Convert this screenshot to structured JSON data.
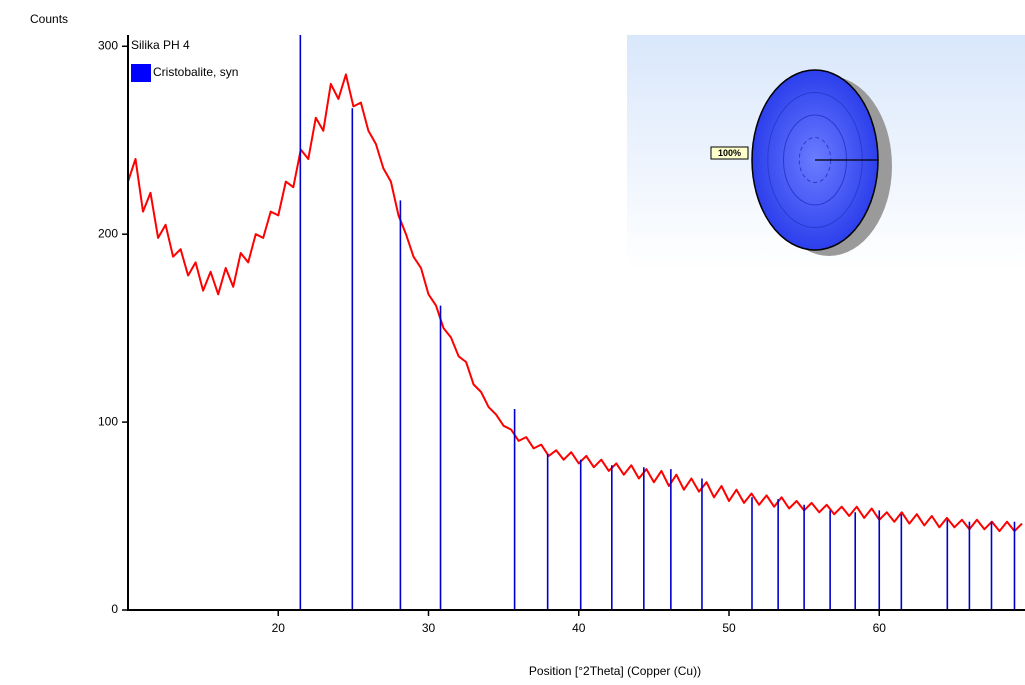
{
  "chart_data": {
    "type": "line",
    "y_label": "Counts",
    "x_label": "Position [°2Theta] (Copper (Cu))",
    "xlim": [
      10,
      69.7
    ],
    "xticks": [
      20,
      30,
      40,
      50,
      60
    ],
    "ylim": [
      0,
      306
    ],
    "yticks": [
      0,
      100,
      200,
      300
    ],
    "series": [
      {
        "name": "Silika PH 4",
        "color": "#ff0000",
        "x": [
          10,
          10.5,
          11,
          11.5,
          12,
          12.5,
          13,
          13.5,
          14,
          14.5,
          15,
          15.5,
          16,
          16.5,
          17,
          17.5,
          18,
          18.5,
          19,
          19.5,
          20,
          20.5,
          21,
          21.5,
          22,
          22.5,
          23,
          23.5,
          24,
          24.5,
          25,
          25.5,
          26,
          26.5,
          27,
          27.5,
          28,
          28.5,
          29,
          29.5,
          30,
          30.5,
          31,
          31.5,
          32,
          32.5,
          33,
          33.5,
          34,
          34.5,
          35,
          35.5,
          36,
          36.5,
          37,
          37.5,
          38,
          38.5,
          39,
          39.5,
          40,
          40.5,
          41,
          41.5,
          42,
          42.5,
          43,
          43.5,
          44,
          44.5,
          45,
          45.5,
          46,
          46.5,
          47,
          47.5,
          48,
          48.5,
          49,
          49.5,
          50,
          50.5,
          51,
          51.5,
          52,
          52.5,
          53,
          53.5,
          54,
          54.5,
          55,
          55.5,
          56,
          56.5,
          57,
          57.5,
          58,
          58.5,
          59,
          59.5,
          60,
          60.5,
          61,
          61.5,
          62,
          62.5,
          63,
          63.5,
          64,
          64.5,
          65,
          65.5,
          66,
          66.5,
          67,
          67.5,
          68,
          68.5,
          69,
          69.5
        ],
        "values": [
          228,
          240,
          212,
          222,
          198,
          205,
          188,
          192,
          178,
          185,
          170,
          180,
          168,
          182,
          172,
          190,
          185,
          200,
          198,
          212,
          210,
          228,
          225,
          245,
          240,
          262,
          255,
          280,
          272,
          285,
          268,
          270,
          255,
          248,
          235,
          228,
          210,
          200,
          188,
          182,
          168,
          162,
          150,
          145,
          135,
          132,
          120,
          116,
          108,
          104,
          98,
          96,
          90,
          92,
          86,
          88,
          82,
          85,
          80,
          84,
          78,
          82,
          76,
          80,
          74,
          78,
          72,
          77,
          70,
          75,
          68,
          74,
          66,
          72,
          64,
          70,
          63,
          68,
          60,
          66,
          58,
          64,
          57,
          62,
          56,
          61,
          55,
          60,
          54,
          58,
          53,
          57,
          52,
          56,
          51,
          55,
          50,
          55,
          49,
          54,
          48,
          52,
          47,
          52,
          46,
          51,
          45,
          50,
          44,
          49,
          44,
          48,
          43,
          48,
          43,
          47,
          42,
          47,
          42,
          46
        ]
      },
      {
        "name": "Cristobalite, syn",
        "color": "#0000cc",
        "style": "sticks",
        "x": [
          21.47,
          24.93,
          28.13,
          30.8,
          35.73,
          37.93,
          40.13,
          42.2,
          44.33,
          46.13,
          48.2,
          51.53,
          53.27,
          55.0,
          56.73,
          58.4,
          60.0,
          61.47,
          64.53,
          66.0,
          67.47,
          69.0
        ],
        "values": [
          306,
          267,
          218,
          162,
          107,
          83,
          80,
          77,
          76,
          75,
          70,
          60,
          59,
          56,
          53,
          52,
          53,
          51,
          48,
          47,
          47,
          47
        ]
      }
    ],
    "inset": {
      "type": "pie",
      "values": [
        100
      ],
      "value_labels": [
        "100%"
      ],
      "color": "#3347f5"
    }
  }
}
